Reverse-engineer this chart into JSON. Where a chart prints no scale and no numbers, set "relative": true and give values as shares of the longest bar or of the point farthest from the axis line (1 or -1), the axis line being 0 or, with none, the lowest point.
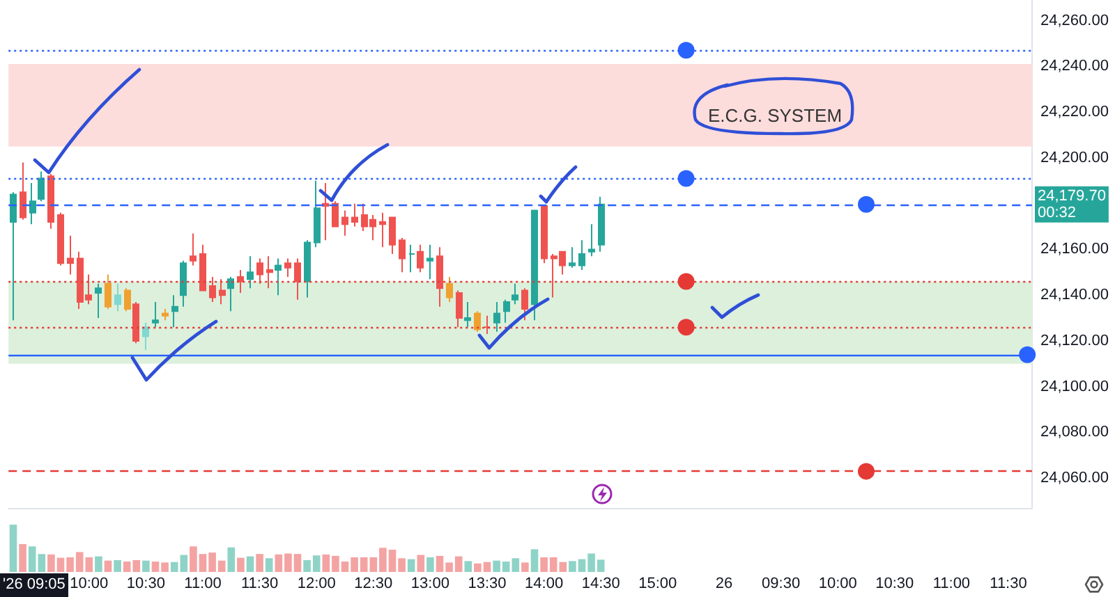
{
  "chart_data": [
    {
      "type": "candlestick",
      "categories": [
        null,
        null,
        null,
        null,
        null,
        null,
        null,
        null,
        "10:00",
        null,
        null,
        null,
        null,
        null,
        "10:30",
        null,
        null,
        null,
        null,
        null,
        "11:00",
        null,
        null,
        null,
        null,
        null,
        "11:30",
        null,
        null,
        null,
        null,
        null,
        "12:00",
        null,
        null,
        null,
        null,
        null,
        "12:30",
        null,
        null,
        null,
        null,
        null,
        "13:00",
        null,
        null,
        null,
        null,
        null,
        "13:30",
        null,
        null,
        null,
        null,
        null,
        "14:00",
        null,
        null,
        null,
        null,
        null,
        "14:30",
        null,
        null,
        null,
        null,
        null,
        "15:00",
        null,
        null,
        null,
        null,
        null,
        null,
        "26",
        null,
        null,
        null,
        null,
        null,
        "09:30",
        null,
        null,
        null,
        null,
        null,
        "10:00",
        null,
        null,
        null,
        null,
        null,
        "10:30",
        null,
        null,
        null,
        null,
        null,
        "11:00",
        null,
        null,
        null,
        null,
        null,
        "11:30",
        null,
        null
      ],
      "ohlc": [
        [
          24172,
          24185,
          24129,
          24184
        ],
        [
          24185,
          24198,
          24173,
          24174
        ],
        [
          24176,
          24189,
          24171,
          24181
        ],
        [
          24182,
          24194,
          24181,
          24191
        ],
        [
          24192,
          24193,
          24169,
          24172
        ],
        [
          24175,
          24176,
          24153,
          24154
        ],
        [
          24156,
          24166,
          24149,
          24154
        ],
        [
          24156,
          24159,
          24134,
          24137
        ],
        [
          24140,
          24149,
          24136,
          24138
        ],
        [
          24141,
          24145,
          24130,
          24143
        ],
        [
          24145,
          24149,
          24134,
          24135
        ],
        [
          24136,
          24145,
          24133,
          24140
        ],
        [
          24142,
          24143,
          24133,
          24134
        ],
        [
          24136,
          24137,
          24119,
          24120
        ],
        [
          24122,
          24128,
          24116,
          24126
        ],
        [
          24128,
          24137,
          24126,
          24129
        ],
        [
          24132,
          24134,
          24129,
          24131
        ],
        [
          24133,
          24140,
          24126,
          24135
        ],
        [
          24140,
          24155,
          24135,
          24154
        ],
        [
          24157,
          24167,
          24153,
          24155
        ],
        [
          24158,
          24162,
          24142,
          24142
        ],
        [
          24144,
          24148,
          24137,
          24139
        ],
        [
          24142,
          24147,
          24136,
          24140
        ],
        [
          24143,
          24148,
          24133,
          24147
        ],
        [
          24148,
          24151,
          24141,
          24146
        ],
        [
          24147,
          24157,
          24143,
          24150
        ],
        [
          24154,
          24156,
          24145,
          24149
        ],
        [
          24151,
          24157,
          24143,
          24150
        ],
        [
          24151,
          24156,
          24140,
          24153
        ],
        [
          24154,
          24156,
          24148,
          24152
        ],
        [
          24154,
          24156,
          24138,
          24146
        ],
        [
          24146,
          24164,
          24139,
          24163
        ],
        [
          24163,
          24190,
          24161,
          24178
        ],
        [
          24180,
          24189,
          24164,
          24179
        ],
        [
          24180,
          24181,
          24170,
          24170
        ],
        [
          24174,
          24177,
          24166,
          24171
        ],
        [
          24174,
          24180,
          24170,
          24172
        ],
        [
          24175,
          24180,
          24168,
          24170
        ],
        [
          24173,
          24175,
          24164,
          24170
        ],
        [
          24172,
          24176,
          24161,
          24171
        ],
        [
          24174,
          24174,
          24158,
          24162
        ],
        [
          24164,
          24165,
          24150,
          24156
        ],
        [
          24158,
          24162,
          24150,
          24158
        ],
        [
          24159,
          24162,
          24150,
          24152
        ],
        [
          24155,
          24162,
          24147,
          24156
        ],
        [
          24157,
          24161,
          24135,
          24143
        ],
        [
          24145,
          24148,
          24137,
          24139
        ],
        [
          24141,
          24142,
          24126,
          24130
        ],
        [
          24129,
          24137,
          24126,
          24130
        ],
        [
          24132,
          24133,
          24124,
          24125
        ],
        [
          24126,
          24131,
          24123,
          24126
        ],
        [
          24128,
          24137,
          24124,
          24132
        ],
        [
          24133,
          24138,
          24128,
          24137
        ],
        [
          24138,
          24145,
          24136,
          24140
        ],
        [
          24142,
          24143,
          24129,
          24134
        ],
        [
          24136,
          24177,
          24129,
          24177
        ],
        [
          24179,
          24179,
          24154,
          24156
        ],
        [
          24157,
          24158,
          24139,
          24156
        ],
        [
          24159,
          24159,
          24149,
          24153
        ],
        [
          24153,
          24161,
          24152,
          24154
        ],
        [
          24153,
          24164,
          24151,
          24158
        ],
        [
          24159,
          24171,
          24157,
          24160
        ],
        [
          24162,
          24183,
          24159,
          24179.7
        ],
        null,
        null,
        null,
        null,
        null,
        null,
        null,
        null,
        null,
        null,
        null,
        null,
        null,
        null,
        null,
        null,
        null,
        null,
        null,
        null,
        null,
        null,
        null,
        null,
        null,
        null,
        null,
        null,
        null,
        null,
        null,
        null,
        null,
        null,
        null,
        null,
        null,
        null,
        null,
        null,
        null,
        null,
        null,
        null,
        null
      ],
      "colors": [
        "#26a69a",
        "#ef5350",
        "#26a69a",
        "#26a69a",
        "#ef5350",
        "#ef5350",
        "#ef5350",
        "#ef5350",
        "#ef5350",
        "#26a69a",
        "#f0a030",
        "#80d8d0",
        "#f0a030",
        "#ef5350",
        "#80d8d0",
        "#26a69a",
        "#f0a030",
        "#26a69a",
        "#26a69a",
        "#ef5350",
        "#ef5350",
        "#ef5350",
        "#ef5350",
        "#26a69a",
        "#ef5350",
        "#26a69a",
        "#ef5350",
        "#ef5350",
        "#26a69a",
        "#ef5350",
        "#ef5350",
        "#26a69a",
        "#26a69a",
        "#ef5350",
        "#ef5350",
        "#ef5350",
        "#ef5350",
        "#ef5350",
        "#ef5350",
        "#ef5350",
        "#ef5350",
        "#ef5350",
        "#26a69a",
        "#ef5350",
        "#26a69a",
        "#ef5350",
        "#f0a030",
        "#ef5350",
        "#26a69a",
        "#f0a030",
        "#ef5350",
        "#26a69a",
        "#26a69a",
        "#26a69a",
        "#ef5350",
        "#26a69a",
        "#ef5350",
        "#ef5350",
        "#ef5350",
        "#26a69a",
        "#26a69a",
        "#26a69a",
        "#26a69a",
        null,
        null,
        null,
        null,
        null,
        null,
        null,
        null,
        null,
        null,
        null,
        null,
        null,
        null,
        null,
        null,
        null,
        null,
        null,
        null,
        null,
        null,
        null,
        null,
        null,
        null,
        null,
        null,
        null,
        null,
        null,
        null,
        null,
        null,
        null,
        null,
        null,
        null,
        null,
        null,
        null,
        null,
        null,
        null,
        null
      ],
      "ylim": [
        24047,
        24269
      ],
      "yticks": [
        {
          "value": 24060,
          "label": "24,060.00"
        },
        {
          "value": 24080,
          "label": "24,080.00"
        },
        {
          "value": 24100,
          "label": "24,100.00"
        },
        {
          "value": 24120,
          "label": "24,120.00"
        },
        {
          "value": 24140,
          "label": "24,140.00"
        },
        {
          "value": 24160,
          "label": "24,160.00"
        },
        {
          "value": 24200,
          "label": "24,200.00"
        },
        {
          "value": 24220,
          "label": "24,220.00"
        },
        {
          "value": 24240,
          "label": "24,240.00"
        },
        {
          "value": 24260,
          "label": "24,260.00"
        }
      ],
      "ref_lines": [
        {
          "axis": "y",
          "value": 24247,
          "color": "#2962ff",
          "line_style": "dotted"
        },
        {
          "axis": "y",
          "value": 24191,
          "color": "#2962ff",
          "line_style": "dotted"
        },
        {
          "axis": "y",
          "value": 24179.7,
          "label": "24,179.70\n00:32",
          "color": "#2962ff",
          "line_style": "dashed"
        },
        {
          "axis": "y",
          "value": 24146,
          "color": "#e53935",
          "line_style": "dotted"
        },
        {
          "axis": "y",
          "value": 24126,
          "color": "#e53935",
          "line_style": "dotted"
        },
        {
          "axis": "y",
          "value": 24114,
          "color": "#2962ff",
          "line_style": "solid"
        },
        {
          "axis": "y",
          "value": 24063,
          "color": "#e53935",
          "line_style": "dashed"
        }
      ],
      "bands": [
        {
          "axis": "y",
          "from": 24205,
          "to": 24241,
          "color": "#fddcdc"
        },
        {
          "axis": "y",
          "from": 24110,
          "to": 24146,
          "color": "#dcf0dc"
        }
      ],
      "annotations": [
        "E.C.G. SYSTEM",
        "'26 09:05"
      ]
    },
    {
      "type": "bar",
      "categories": [
        null,
        null,
        null,
        null,
        null,
        null,
        null,
        null,
        null,
        null,
        null,
        null,
        null,
        null,
        null,
        null,
        null,
        null,
        null,
        null,
        null,
        null,
        null,
        null,
        null,
        null,
        null,
        null,
        null,
        null,
        null,
        null,
        null,
        null,
        null,
        null,
        null,
        null,
        null,
        null,
        null,
        null,
        null,
        null,
        null,
        null,
        null,
        null,
        null,
        null,
        null,
        null,
        null,
        null,
        null,
        null,
        null,
        null,
        null,
        null,
        null,
        null,
        null,
        null,
        null,
        null,
        null,
        null,
        null,
        null,
        null,
        null,
        null,
        null,
        null,
        null,
        null,
        null,
        null,
        null,
        null,
        null,
        null,
        null,
        null,
        null,
        null,
        null,
        null,
        null,
        null,
        null,
        null,
        null,
        null,
        null,
        null,
        null,
        null,
        null,
        null,
        null,
        null,
        null,
        null,
        null,
        null,
        null
      ],
      "values": [
        1,
        0.59,
        0.54,
        0.38,
        0.37,
        0.3,
        0.31,
        0.42,
        0.31,
        0.33,
        0.24,
        0.25,
        0.22,
        0.25,
        0.24,
        0.22,
        0.2,
        0.21,
        0.36,
        0.54,
        0.38,
        0.41,
        0.24,
        0.52,
        0.3,
        0.33,
        0.38,
        0.29,
        0.37,
        0.39,
        0.38,
        0.25,
        0.35,
        0.37,
        0.34,
        0.22,
        0.31,
        0.31,
        0.31,
        0.51,
        0.47,
        0.29,
        0.27,
        0.36,
        0.31,
        0.34,
        0.2,
        0.33,
        0.23,
        0.18,
        0.21,
        0.24,
        0.22,
        0.29,
        0.2,
        0.48,
        0.31,
        0.31,
        0.21,
        0.23,
        0.27,
        0.39,
        0.26,
        null,
        null,
        null,
        null,
        null,
        null,
        null,
        null,
        null,
        null,
        null,
        null,
        null,
        null,
        null,
        null,
        null,
        null,
        null,
        null,
        null,
        null,
        null,
        null,
        null,
        null,
        null,
        null,
        null,
        null,
        null,
        null,
        null,
        null,
        null,
        null,
        null,
        null,
        null,
        null,
        null,
        null,
        null,
        null,
        null
      ],
      "colors": [
        "#8fd3c7",
        "#f4a3a3",
        "#8fd3c7",
        "#8fd3c7",
        "#f4a3a3",
        "#f4a3a3",
        "#f4a3a3",
        "#f4a3a3",
        "#f4a3a3",
        "#8fd3c7",
        "#f4a3a3",
        "#8fd3c7",
        "#f4a3a3",
        "#f4a3a3",
        "#8fd3c7",
        "#f4a3a3",
        "#f4a3a3",
        "#8fd3c7",
        "#8fd3c7",
        "#f4a3a3",
        "#f4a3a3",
        "#f4a3a3",
        "#f4a3a3",
        "#8fd3c7",
        "#f4a3a3",
        "#8fd3c7",
        "#f4a3a3",
        "#8fd3c7",
        "#f4a3a3",
        "#f4a3a3",
        "#f4a3a3",
        "#8fd3c7",
        "#8fd3c7",
        "#f4a3a3",
        "#f4a3a3",
        "#f4a3a3",
        "#f4a3a3",
        "#f4a3a3",
        "#f4a3a3",
        "#f4a3a3",
        "#f4a3a3",
        "#f4a3a3",
        "#8fd3c7",
        "#f4a3a3",
        "#8fd3c7",
        "#f4a3a3",
        "#f4a3a3",
        "#f4a3a3",
        "#8fd3c7",
        "#f4a3a3",
        "#f4a3a3",
        "#8fd3c7",
        "#8fd3c7",
        "#8fd3c7",
        "#f4a3a3",
        "#8fd3c7",
        "#f4a3a3",
        "#f4a3a3",
        "#f4a3a3",
        "#8fd3c7",
        "#8fd3c7",
        "#8fd3c7",
        "#8fd3c7",
        null,
        null,
        null,
        null,
        null,
        null,
        null,
        null,
        null,
        null,
        null,
        null,
        null,
        null,
        null,
        null,
        null,
        null,
        null,
        null,
        null,
        null,
        null,
        null,
        null,
        null,
        null,
        null,
        null,
        null,
        null,
        null,
        null,
        null,
        null,
        null,
        null,
        null,
        null,
        null,
        null,
        null,
        null,
        null,
        null
      ],
      "relative": true,
      "tick_labels": false
    }
  ]
}
